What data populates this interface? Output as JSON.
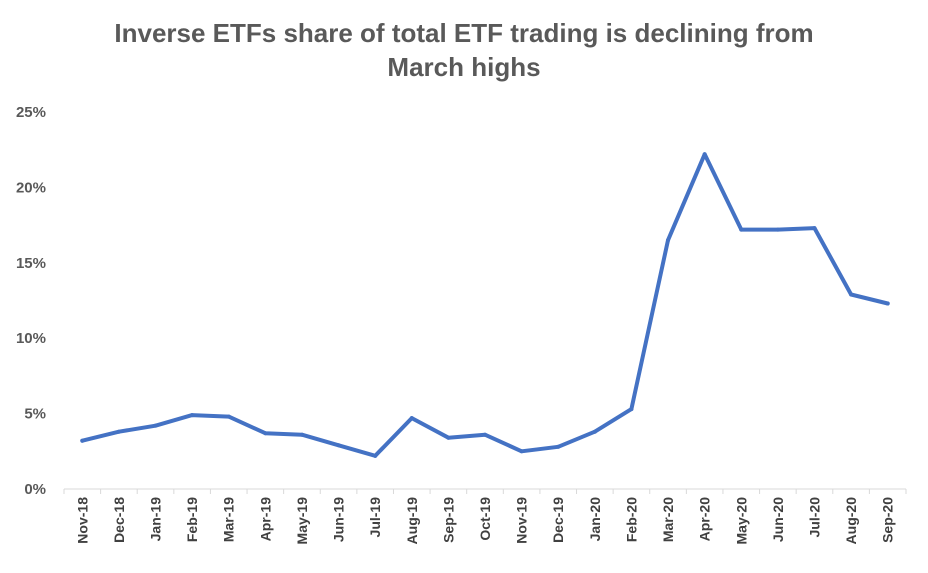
{
  "chart_data": {
    "type": "line",
    "title_line1": "Inverse ETFs share of total ETF trading is declining from",
    "title_line2": "March highs",
    "categories": [
      "Nov-18",
      "Dec-18",
      "Jan-19",
      "Feb-19",
      "Mar-19",
      "Apr-19",
      "May-19",
      "Jun-19",
      "Jul-19",
      "Aug-19",
      "Sep-19",
      "Oct-19",
      "Nov-19",
      "Dec-19",
      "Jan-20",
      "Feb-20",
      "Mar-20",
      "Apr-20",
      "May-20",
      "Jun-20",
      "Jul-20",
      "Aug-20",
      "Sep-20"
    ],
    "series": [
      {
        "color": "#4472C4",
        "values": [
          3.2,
          3.8,
          4.2,
          4.9,
          4.8,
          3.7,
          3.6,
          2.9,
          2.2,
          4.7,
          3.4,
          3.6,
          2.5,
          2.8,
          3.8,
          5.3,
          16.5,
          22.2,
          17.2,
          17.2,
          17.3,
          12.9,
          12.3
        ]
      }
    ],
    "yticks": [
      "0%",
      "5%",
      "10%",
      "15%",
      "20%",
      "25%"
    ],
    "ylim": [
      0,
      25
    ],
    "grid": false,
    "legend": "none"
  }
}
